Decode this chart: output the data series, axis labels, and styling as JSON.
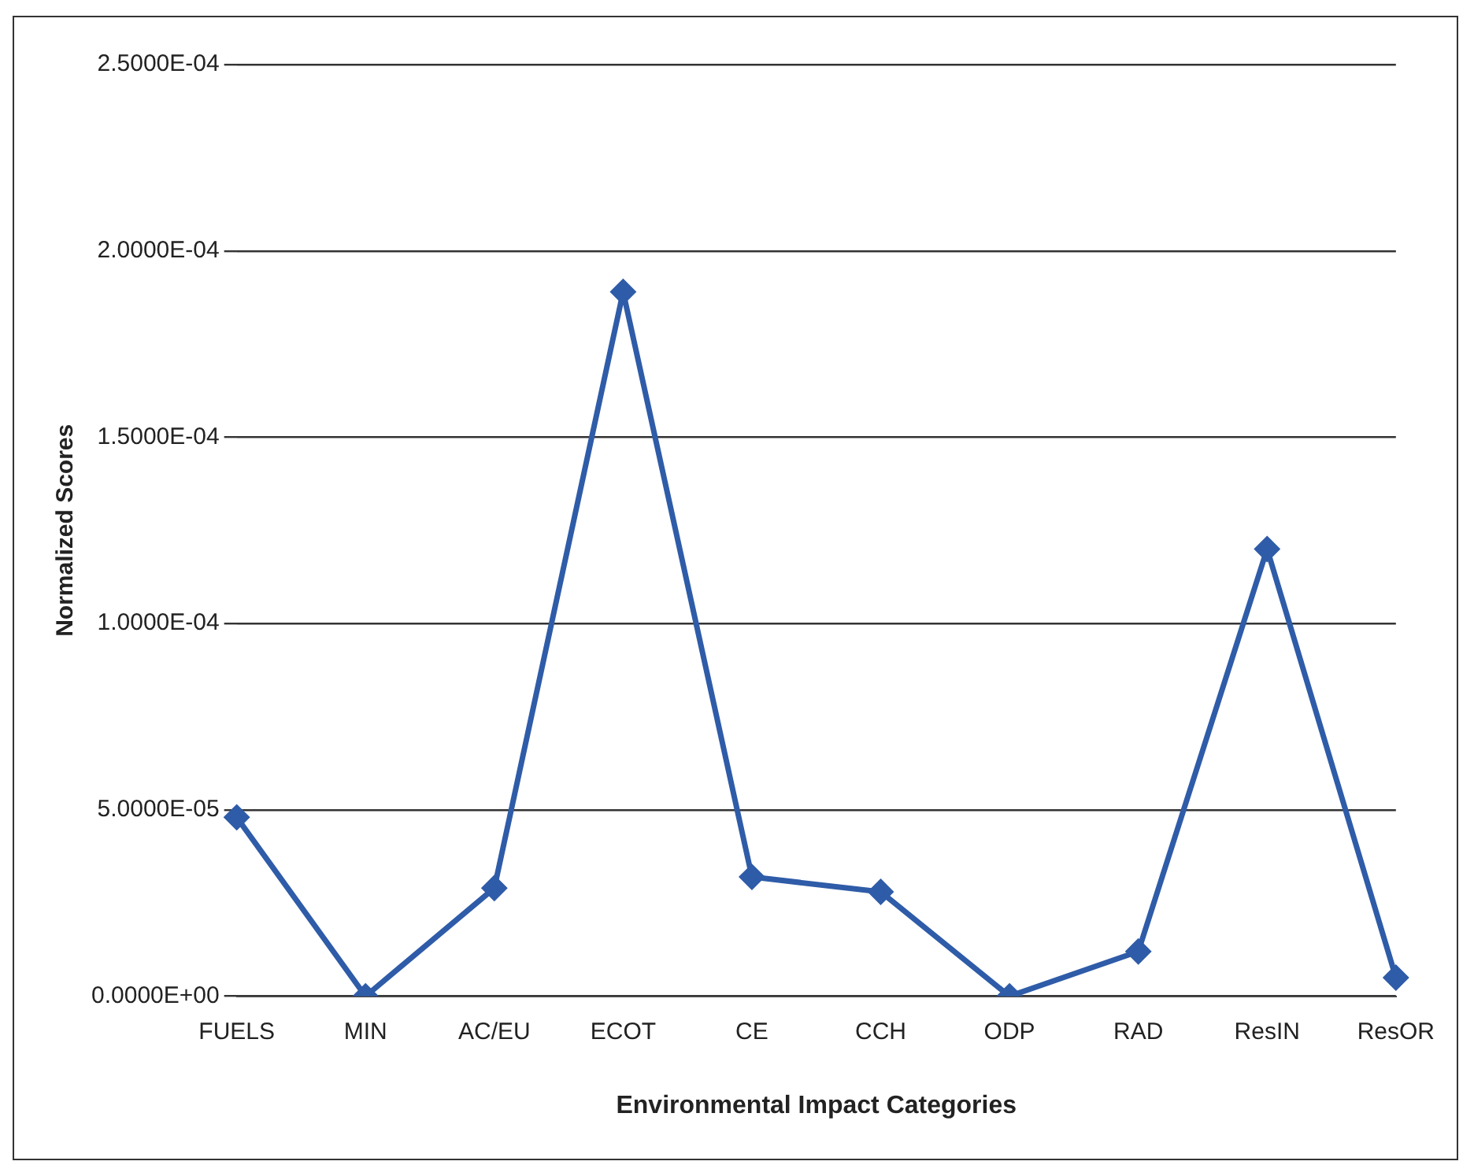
{
  "chart_data": {
    "type": "line",
    "xlabel": "Environmental Impact Categories",
    "ylabel": "Normalized Scores",
    "categories": [
      "FUELS",
      "MIN",
      "AC/EU",
      "ECOT",
      "CE",
      "CCH",
      "ODP",
      "RAD",
      "ResIN",
      "ResOR"
    ],
    "series": [
      {
        "color": "#2f5ca8",
        "values": [
          4.8e-05,
          0,
          2.9e-05,
          0.000189,
          3.2e-05,
          2.8e-05,
          0,
          1.2e-05,
          0.00012,
          5e-06
        ]
      }
    ],
    "ylim": [
      0,
      0.00025
    ],
    "yticks": [
      {
        "value": 0,
        "label": "0.0000E+00"
      },
      {
        "value": 5e-05,
        "label": "5.0000E-05"
      },
      {
        "value": 0.0001,
        "label": "1.0000E-04"
      },
      {
        "value": 0.00015,
        "label": "1.5000E-04"
      },
      {
        "value": 0.0002,
        "label": "2.0000E-04"
      },
      {
        "value": 0.00025,
        "label": "2.5000E-04"
      }
    ],
    "grid": "y",
    "legend": false,
    "marker": "diamond",
    "line_style": "solid"
  }
}
